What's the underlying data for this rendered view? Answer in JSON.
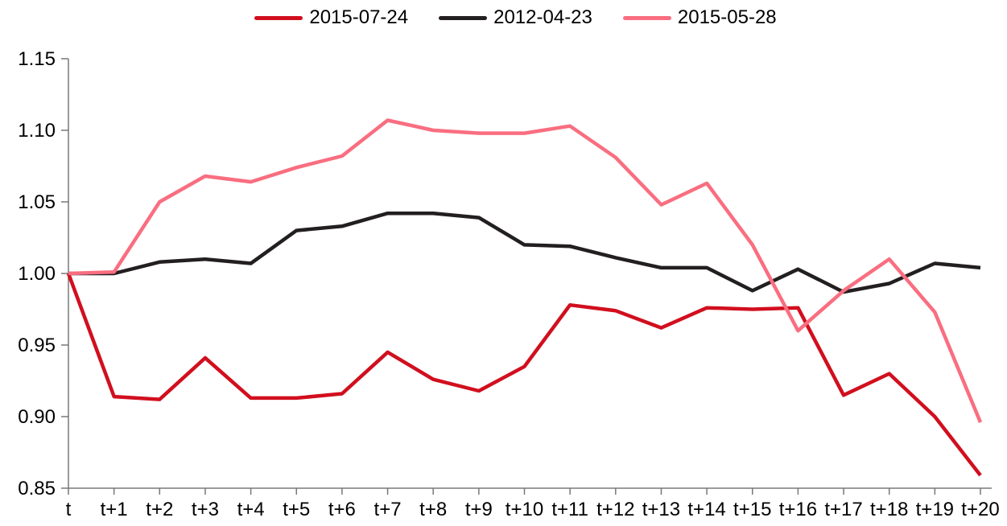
{
  "chart_data": {
    "type": "line",
    "title": "",
    "xlabel": "",
    "ylabel": "",
    "grid": false,
    "legend_position": "top",
    "categories": [
      "t",
      "t+1",
      "t+2",
      "t+3",
      "t+4",
      "t+5",
      "t+6",
      "t+7",
      "t+8",
      "t+9",
      "t+10",
      "t+11",
      "t+12",
      "t+13",
      "t+14",
      "t+15",
      "t+16",
      "t+17",
      "t+18",
      "t+19",
      "t+20"
    ],
    "series": [
      {
        "name": "2015-07-24",
        "color": "#d10f1e",
        "values": [
          1.0,
          0.914,
          0.912,
          0.941,
          0.913,
          0.913,
          0.916,
          0.945,
          0.926,
          0.918,
          0.935,
          0.978,
          0.974,
          0.962,
          0.976,
          0.975,
          0.976,
          0.915,
          0.93,
          0.9,
          0.859
        ]
      },
      {
        "name": "2012-04-23",
        "color": "#231f20",
        "values": [
          1.0,
          1.0,
          1.008,
          1.01,
          1.007,
          1.03,
          1.033,
          1.042,
          1.042,
          1.039,
          1.02,
          1.019,
          1.011,
          1.004,
          1.004,
          0.988,
          1.003,
          0.987,
          0.993,
          1.007,
          1.004
        ]
      },
      {
        "name": "2015-05-28",
        "color": "#f96e80",
        "values": [
          1.0,
          1.001,
          1.05,
          1.068,
          1.064,
          1.074,
          1.082,
          1.107,
          1.1,
          1.098,
          1.098,
          1.103,
          1.081,
          1.048,
          1.063,
          1.02,
          0.96,
          0.988,
          1.01,
          0.973,
          0.896
        ]
      }
    ],
    "ylim": [
      0.85,
      1.15
    ],
    "ytick_step": 0.05,
    "ytick_labels": [
      "0.85",
      "0.90",
      "0.95",
      "1.00",
      "1.05",
      "1.10",
      "1.15"
    ],
    "axis_color": "#77787b",
    "text_color": "#000000",
    "line_width": 4.5
  }
}
